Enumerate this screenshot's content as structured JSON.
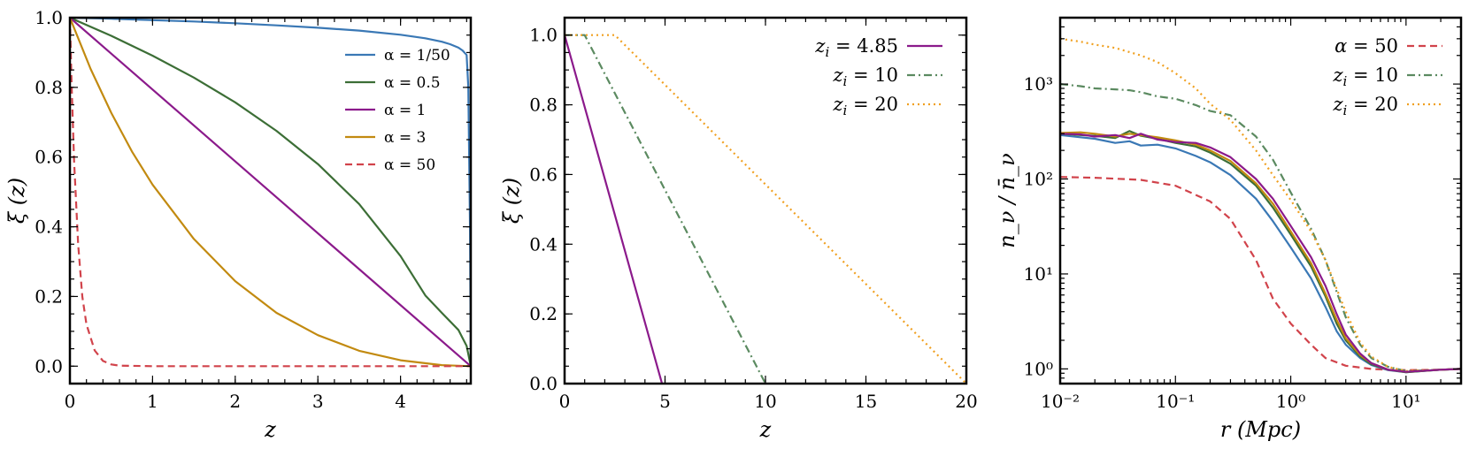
{
  "colors": {
    "blue": "#3a78b5",
    "green": "#3c6e36",
    "purple": "#8b1a8b",
    "gold": "#c28a10",
    "red": "#d1434b",
    "green_dashdot": "#5b8a60",
    "orange_dot": "#f0a020"
  },
  "chart_data": [
    {
      "type": "line",
      "xlabel": "z",
      "ylabel": "ξ (z)",
      "xlim": [
        0,
        4.85
      ],
      "ylim": [
        -0.05,
        1.0
      ],
      "xticks": [
        0,
        1,
        2,
        3,
        4
      ],
      "yticks": [
        0.0,
        0.2,
        0.4,
        0.6,
        0.8,
        1.0
      ],
      "xtick_labels": [
        "0",
        "1",
        "2",
        "3",
        "4"
      ],
      "ytick_labels": [
        "0.0",
        "0.2",
        "0.4",
        "0.6",
        "0.8",
        "1.0"
      ],
      "legend_position": "top-right",
      "series": [
        {
          "name": "α = 1/50",
          "color": "#3a78b5",
          "style": "solid",
          "x": [
            0,
            0.5,
            1,
            1.5,
            2,
            2.5,
            3,
            3.5,
            4,
            4.3,
            4.5,
            4.6,
            4.7,
            4.75,
            4.8,
            4.82,
            4.84,
            4.85
          ],
          "y": [
            1.0,
            0.997,
            0.993,
            0.989,
            0.984,
            0.978,
            0.971,
            0.963,
            0.951,
            0.941,
            0.931,
            0.924,
            0.914,
            0.906,
            0.893,
            0.8,
            0.4,
            0.0
          ]
        },
        {
          "name": "α = 0.5",
          "color": "#3c6e36",
          "style": "solid",
          "x": [
            0,
            0.5,
            1,
            1.5,
            2,
            2.5,
            3,
            3.5,
            4,
            4.3,
            4.5,
            4.7,
            4.8,
            4.85
          ],
          "y": [
            1.0,
            0.948,
            0.891,
            0.828,
            0.757,
            0.675,
            0.58,
            0.465,
            0.316,
            0.203,
            0.153,
            0.104,
            0.058,
            0.0
          ]
        },
        {
          "name": "α = 1",
          "color": "#8b1a8b",
          "style": "solid",
          "x": [
            0,
            4.85
          ],
          "y": [
            1.0,
            0.0
          ]
        },
        {
          "name": "α = 3",
          "color": "#c28a10",
          "style": "solid",
          "x": [
            0,
            0.25,
            0.5,
            0.75,
            1,
            1.5,
            2,
            2.5,
            3,
            3.5,
            4,
            4.5,
            4.85
          ],
          "y": [
            1.0,
            0.853,
            0.727,
            0.616,
            0.521,
            0.365,
            0.244,
            0.153,
            0.089,
            0.044,
            0.017,
            0.003,
            0.0
          ]
        },
        {
          "name": "α = 50",
          "color": "#d1434b",
          "style": "dashed",
          "x": [
            0,
            0.02,
            0.05,
            0.1,
            0.15,
            0.2,
            0.3,
            0.4,
            0.5,
            0.6,
            1,
            2,
            3,
            4,
            4.85
          ],
          "y": [
            1.0,
            0.81,
            0.59,
            0.35,
            0.2,
            0.12,
            0.045,
            0.015,
            0.005,
            0.0015,
            0.0,
            0.0,
            0.0,
            0.0,
            0.0
          ]
        }
      ]
    },
    {
      "type": "line",
      "xlabel": "z",
      "ylabel": "ξ (z)",
      "xlim": [
        0,
        20
      ],
      "ylim": [
        0.0,
        1.05
      ],
      "xticks": [
        0,
        5,
        10,
        15,
        20
      ],
      "yticks": [
        0.0,
        0.2,
        0.4,
        0.6,
        0.8,
        1.0
      ],
      "xtick_labels": [
        "0",
        "5",
        "10",
        "15",
        "20"
      ],
      "ytick_labels": [
        "0.0",
        "0.2",
        "0.4",
        "0.6",
        "0.8",
        "1.0"
      ],
      "legend_position": "top-right",
      "series": [
        {
          "name": "z_i = 4.85",
          "legend_main": "z",
          "legend_sub": "i",
          "legend_value": "4.85",
          "color": "#8b1a8b",
          "style": "solid",
          "x": [
            0,
            4.85
          ],
          "y": [
            1.0,
            0.0
          ]
        },
        {
          "name": "z_i = 10",
          "legend_main": "z",
          "legend_sub": "i",
          "legend_value": "10",
          "color": "#5b8a60",
          "style": "dashdot",
          "x": [
            0,
            0.6,
            1.0,
            10.0
          ],
          "y": [
            1.0,
            1.0,
            1.0,
            0.0
          ]
        },
        {
          "name": "z_i = 20",
          "legend_main": "z",
          "legend_sub": "i",
          "legend_value": "20",
          "color": "#f0a020",
          "style": "dotted",
          "x": [
            0,
            1.0,
            2.5,
            20.0
          ],
          "y": [
            1.0,
            1.0,
            1.0,
            0.0
          ]
        }
      ]
    },
    {
      "type": "line",
      "xscale": "log",
      "yscale": "log",
      "xlabel": "r (Mpc)",
      "ylabel": "n_ν / n̄_ν",
      "xlim": [
        0.01,
        30
      ],
      "ylim": [
        0.7,
        5000
      ],
      "xticks": [
        0.01,
        0.1,
        1,
        10
      ],
      "yticks": [
        1,
        10,
        100,
        1000
      ],
      "xtick_labels": [
        "10⁻²",
        "10⁻¹",
        "10⁰",
        "10¹"
      ],
      "ytick_labels": [
        "10⁰",
        "10¹",
        "10²",
        "10³"
      ],
      "legend_position": "top-right",
      "series": [
        {
          "name": "α = 50",
          "legend_main": "α",
          "legend_sub": "",
          "legend_value": "50",
          "color": "#d1434b",
          "style": "dashed",
          "x": [
            0.01,
            0.02,
            0.05,
            0.1,
            0.2,
            0.3,
            0.5,
            0.7,
            1.0,
            1.5,
            2,
            3,
            5,
            7,
            10,
            20,
            30
          ],
          "y": [
            105,
            103,
            98,
            85,
            58,
            38,
            14,
            5.5,
            3.0,
            1.8,
            1.3,
            1.08,
            1.0,
            0.98,
            0.97,
            0.98,
            1.0
          ]
        },
        {
          "name": "z_i = 10",
          "legend_main": "z",
          "legend_sub": "i",
          "legend_value": "10",
          "color": "#5b8a60",
          "style": "dashdot",
          "x": [
            0.01,
            0.015,
            0.02,
            0.03,
            0.04,
            0.05,
            0.07,
            0.1,
            0.15,
            0.2,
            0.3,
            0.5,
            0.7,
            1.0,
            1.5,
            2,
            2.5,
            3,
            4,
            5,
            7,
            10,
            20,
            30
          ],
          "y": [
            1000,
            950,
            900,
            880,
            860,
            820,
            740,
            700,
            600,
            520,
            470,
            280,
            160,
            72,
            30,
            14,
            6.5,
            3.5,
            1.8,
            1.3,
            1.05,
            0.95,
            0.98,
            1.0
          ]
        },
        {
          "name": "z_i = 20",
          "legend_main": "z",
          "legend_sub": "i",
          "legend_value": "20",
          "color": "#f0a020",
          "style": "dotted",
          "x": [
            0.01,
            0.015,
            0.02,
            0.03,
            0.05,
            0.07,
            0.1,
            0.15,
            0.2,
            0.3,
            0.5,
            0.7,
            1.0,
            1.5,
            2,
            2.5,
            3,
            4,
            5,
            7,
            10,
            20,
            30
          ],
          "y": [
            3000,
            2800,
            2600,
            2400,
            2000,
            1700,
            1300,
            900,
            620,
            420,
            200,
            110,
            60,
            28,
            14,
            7,
            4,
            1.9,
            1.35,
            1.05,
            0.95,
            0.98,
            1.0
          ]
        },
        {
          "name": "run-blue",
          "legend": false,
          "color": "#3a78b5",
          "style": "solid",
          "x": [
            0.01,
            0.015,
            0.02,
            0.03,
            0.04,
            0.05,
            0.07,
            0.1,
            0.15,
            0.2,
            0.3,
            0.5,
            0.7,
            1.0,
            1.5,
            2,
            2.5,
            3,
            4,
            5,
            7,
            10,
            20,
            30
          ],
          "y": [
            290,
            275,
            265,
            240,
            250,
            225,
            230,
            210,
            175,
            150,
            110,
            62,
            36,
            19,
            9,
            4.5,
            2.5,
            1.8,
            1.3,
            1.1,
            0.97,
            0.92,
            0.98,
            1.0
          ]
        },
        {
          "name": "run-green",
          "legend": false,
          "color": "#3c6e36",
          "style": "solid",
          "x": [
            0.01,
            0.015,
            0.02,
            0.03,
            0.04,
            0.05,
            0.07,
            0.1,
            0.15,
            0.2,
            0.3,
            0.5,
            0.7,
            1.0,
            1.5,
            2,
            2.5,
            3,
            4,
            5,
            7,
            10,
            20,
            30
          ],
          "y": [
            300,
            290,
            285,
            270,
            320,
            285,
            265,
            240,
            220,
            190,
            145,
            85,
            50,
            26,
            12,
            5.8,
            3.0,
            2.0,
            1.35,
            1.12,
            0.98,
            0.92,
            0.98,
            1.0
          ]
        },
        {
          "name": "run-gold",
          "legend": false,
          "color": "#c28a10",
          "style": "solid",
          "x": [
            0.01,
            0.015,
            0.02,
            0.03,
            0.04,
            0.05,
            0.07,
            0.1,
            0.15,
            0.2,
            0.3,
            0.5,
            0.7,
            1.0,
            1.5,
            2,
            2.5,
            3,
            4,
            5,
            7,
            10,
            20,
            30
          ],
          "y": [
            305,
            310,
            300,
            280,
            300,
            290,
            275,
            255,
            230,
            200,
            155,
            90,
            55,
            28,
            13,
            6.2,
            3.3,
            2.1,
            1.4,
            1.15,
            0.98,
            0.93,
            0.98,
            1.0
          ]
        },
        {
          "name": "run-purple",
          "legend": false,
          "color": "#8b1a8b",
          "style": "solid",
          "x": [
            0.01,
            0.015,
            0.02,
            0.03,
            0.04,
            0.05,
            0.07,
            0.1,
            0.15,
            0.2,
            0.3,
            0.5,
            0.7,
            1.0,
            1.5,
            2,
            2.5,
            3,
            4,
            5,
            7,
            10,
            20,
            30
          ],
          "y": [
            300,
            295,
            280,
            290,
            270,
            300,
            260,
            245,
            240,
            215,
            170,
            100,
            62,
            32,
            15,
            7.5,
            3.8,
            2.3,
            1.45,
            1.15,
            0.98,
            0.93,
            0.98,
            1.0
          ]
        }
      ]
    }
  ]
}
